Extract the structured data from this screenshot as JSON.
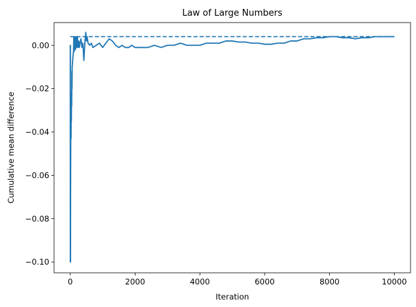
{
  "chart_data": {
    "type": "line",
    "title": "Law of Large Numbers",
    "xlabel": "Iteration",
    "ylabel": "Cumulative mean difference",
    "xlim": [
      -500,
      10500
    ],
    "ylim": [
      -0.105,
      0.0105
    ],
    "xticks": [
      0,
      2000,
      4000,
      6000,
      8000,
      10000
    ],
    "xtick_labels": [
      "0",
      "2000",
      "4000",
      "6000",
      "8000",
      "10000"
    ],
    "yticks": [
      -0.1,
      -0.08,
      -0.06,
      -0.04,
      -0.02,
      0.0
    ],
    "ytick_labels": [
      "−0.10",
      "−0.08",
      "−0.06",
      "−0.04",
      "−0.02",
      "0.00"
    ],
    "grid": false,
    "series": [
      {
        "style": "solid",
        "color": "#1f77b4",
        "x": [
          0,
          2,
          4,
          6,
          8,
          10,
          15,
          20,
          25,
          30,
          35,
          40,
          45,
          50,
          55,
          60,
          70,
          80,
          90,
          100,
          110,
          120,
          140,
          160,
          180,
          200,
          220,
          240,
          260,
          280,
          300,
          330,
          360,
          390,
          420,
          450,
          480,
          500,
          520,
          550,
          600,
          650,
          700,
          800,
          900,
          1000,
          1100,
          1200,
          1300,
          1350,
          1400,
          1500,
          1600,
          1700,
          1800,
          1900,
          2000,
          2200,
          2400,
          2600,
          2800,
          3000,
          3200,
          3400,
          3600,
          3800,
          4000,
          4200,
          4400,
          4600,
          4800,
          5000,
          5200,
          5400,
          5600,
          5800,
          6000,
          6200,
          6400,
          6600,
          6800,
          7000,
          7200,
          7400,
          7600,
          7800,
          8000,
          8200,
          8400,
          8600,
          8800,
          9000,
          9200,
          9400,
          9600,
          9800,
          10000
        ],
        "y": [
          0.0,
          -0.1,
          0.0,
          -0.05,
          -0.1,
          -0.07,
          -0.045,
          -0.03,
          -0.043,
          -0.022,
          -0.035,
          -0.022,
          -0.028,
          -0.012,
          -0.02,
          -0.01,
          -0.008,
          -0.006,
          -0.004,
          -0.003,
          0.004,
          -0.003,
          0.004,
          -0.002,
          0.004,
          -0.001,
          0.004,
          -0.001,
          0.002,
          -0.001,
          0.001,
          0.003,
          -0.001,
          0.001,
          -0.007,
          0.001,
          0.006,
          0.002,
          0.004,
          0.001,
          0.0,
          0.001,
          -0.001,
          0.0,
          0.001,
          -0.001,
          0.001,
          0.003,
          0.002,
          0.001,
          0.0,
          -0.001,
          0.0,
          -0.001,
          -0.001,
          0.0,
          -0.001,
          -0.001,
          -0.001,
          0.0,
          -0.001,
          0.0,
          0.0,
          0.001,
          0.0,
          0.0,
          0.0,
          0.001,
          0.001,
          0.001,
          0.002,
          0.002,
          0.0015,
          0.0015,
          0.001,
          0.001,
          0.0005,
          0.0005,
          0.001,
          0.001,
          0.002,
          0.002,
          0.003,
          0.003,
          0.0035,
          0.0035,
          0.004,
          0.004,
          0.0035,
          0.0035,
          0.003,
          0.0035,
          0.0035,
          0.004,
          0.004,
          0.004,
          0.004
        ]
      },
      {
        "style": "dashed",
        "color": "#1f77b4",
        "x": [
          0,
          10000
        ],
        "y": [
          0.004,
          0.004
        ]
      }
    ]
  }
}
